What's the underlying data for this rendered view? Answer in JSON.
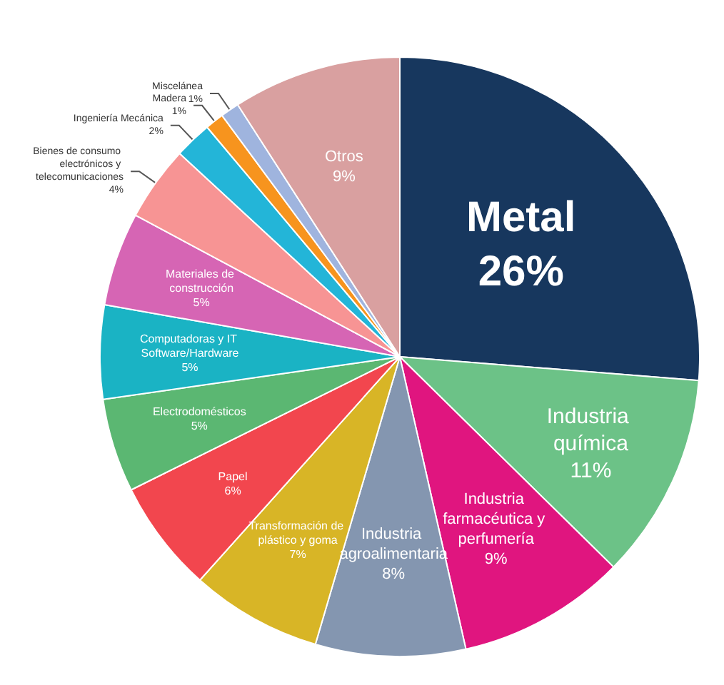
{
  "chart_data": {
    "type": "pie",
    "categories": [
      "Metal",
      "Industria química",
      "Industria farmacéutica y perfumería",
      "Industria agroalimentaria",
      "Transformación de plástico y goma",
      "Papel",
      "Electrodomésticos",
      "Computadoras y IT Software/Hardware",
      "Materiales de construcción",
      "Bienes de consumo electrónicos y telecomunicaciones",
      "Ingeniería Mecánica",
      "Madera",
      "Miscelánea",
      "Otros"
    ],
    "values": [
      26,
      11,
      9,
      8,
      7,
      6,
      5,
      5,
      5,
      4,
      2,
      1,
      1,
      9
    ],
    "value_labels": [
      "26%",
      "11%",
      "9%",
      "8%",
      "7%",
      "6%",
      "5%",
      "5%",
      "5%",
      "4%",
      "2%",
      "1%",
      "1%",
      "9%"
    ],
    "colors": [
      "#17375e",
      "#6cc287",
      "#e0157f",
      "#8496b0",
      "#d8b526",
      "#f2464e",
      "#5bb772",
      "#1ab3c4",
      "#d665b4",
      "#f79494",
      "#23b5d8",
      "#f7941e",
      "#9fb4de",
      "#d9a0a0"
    ],
    "legend": false
  }
}
